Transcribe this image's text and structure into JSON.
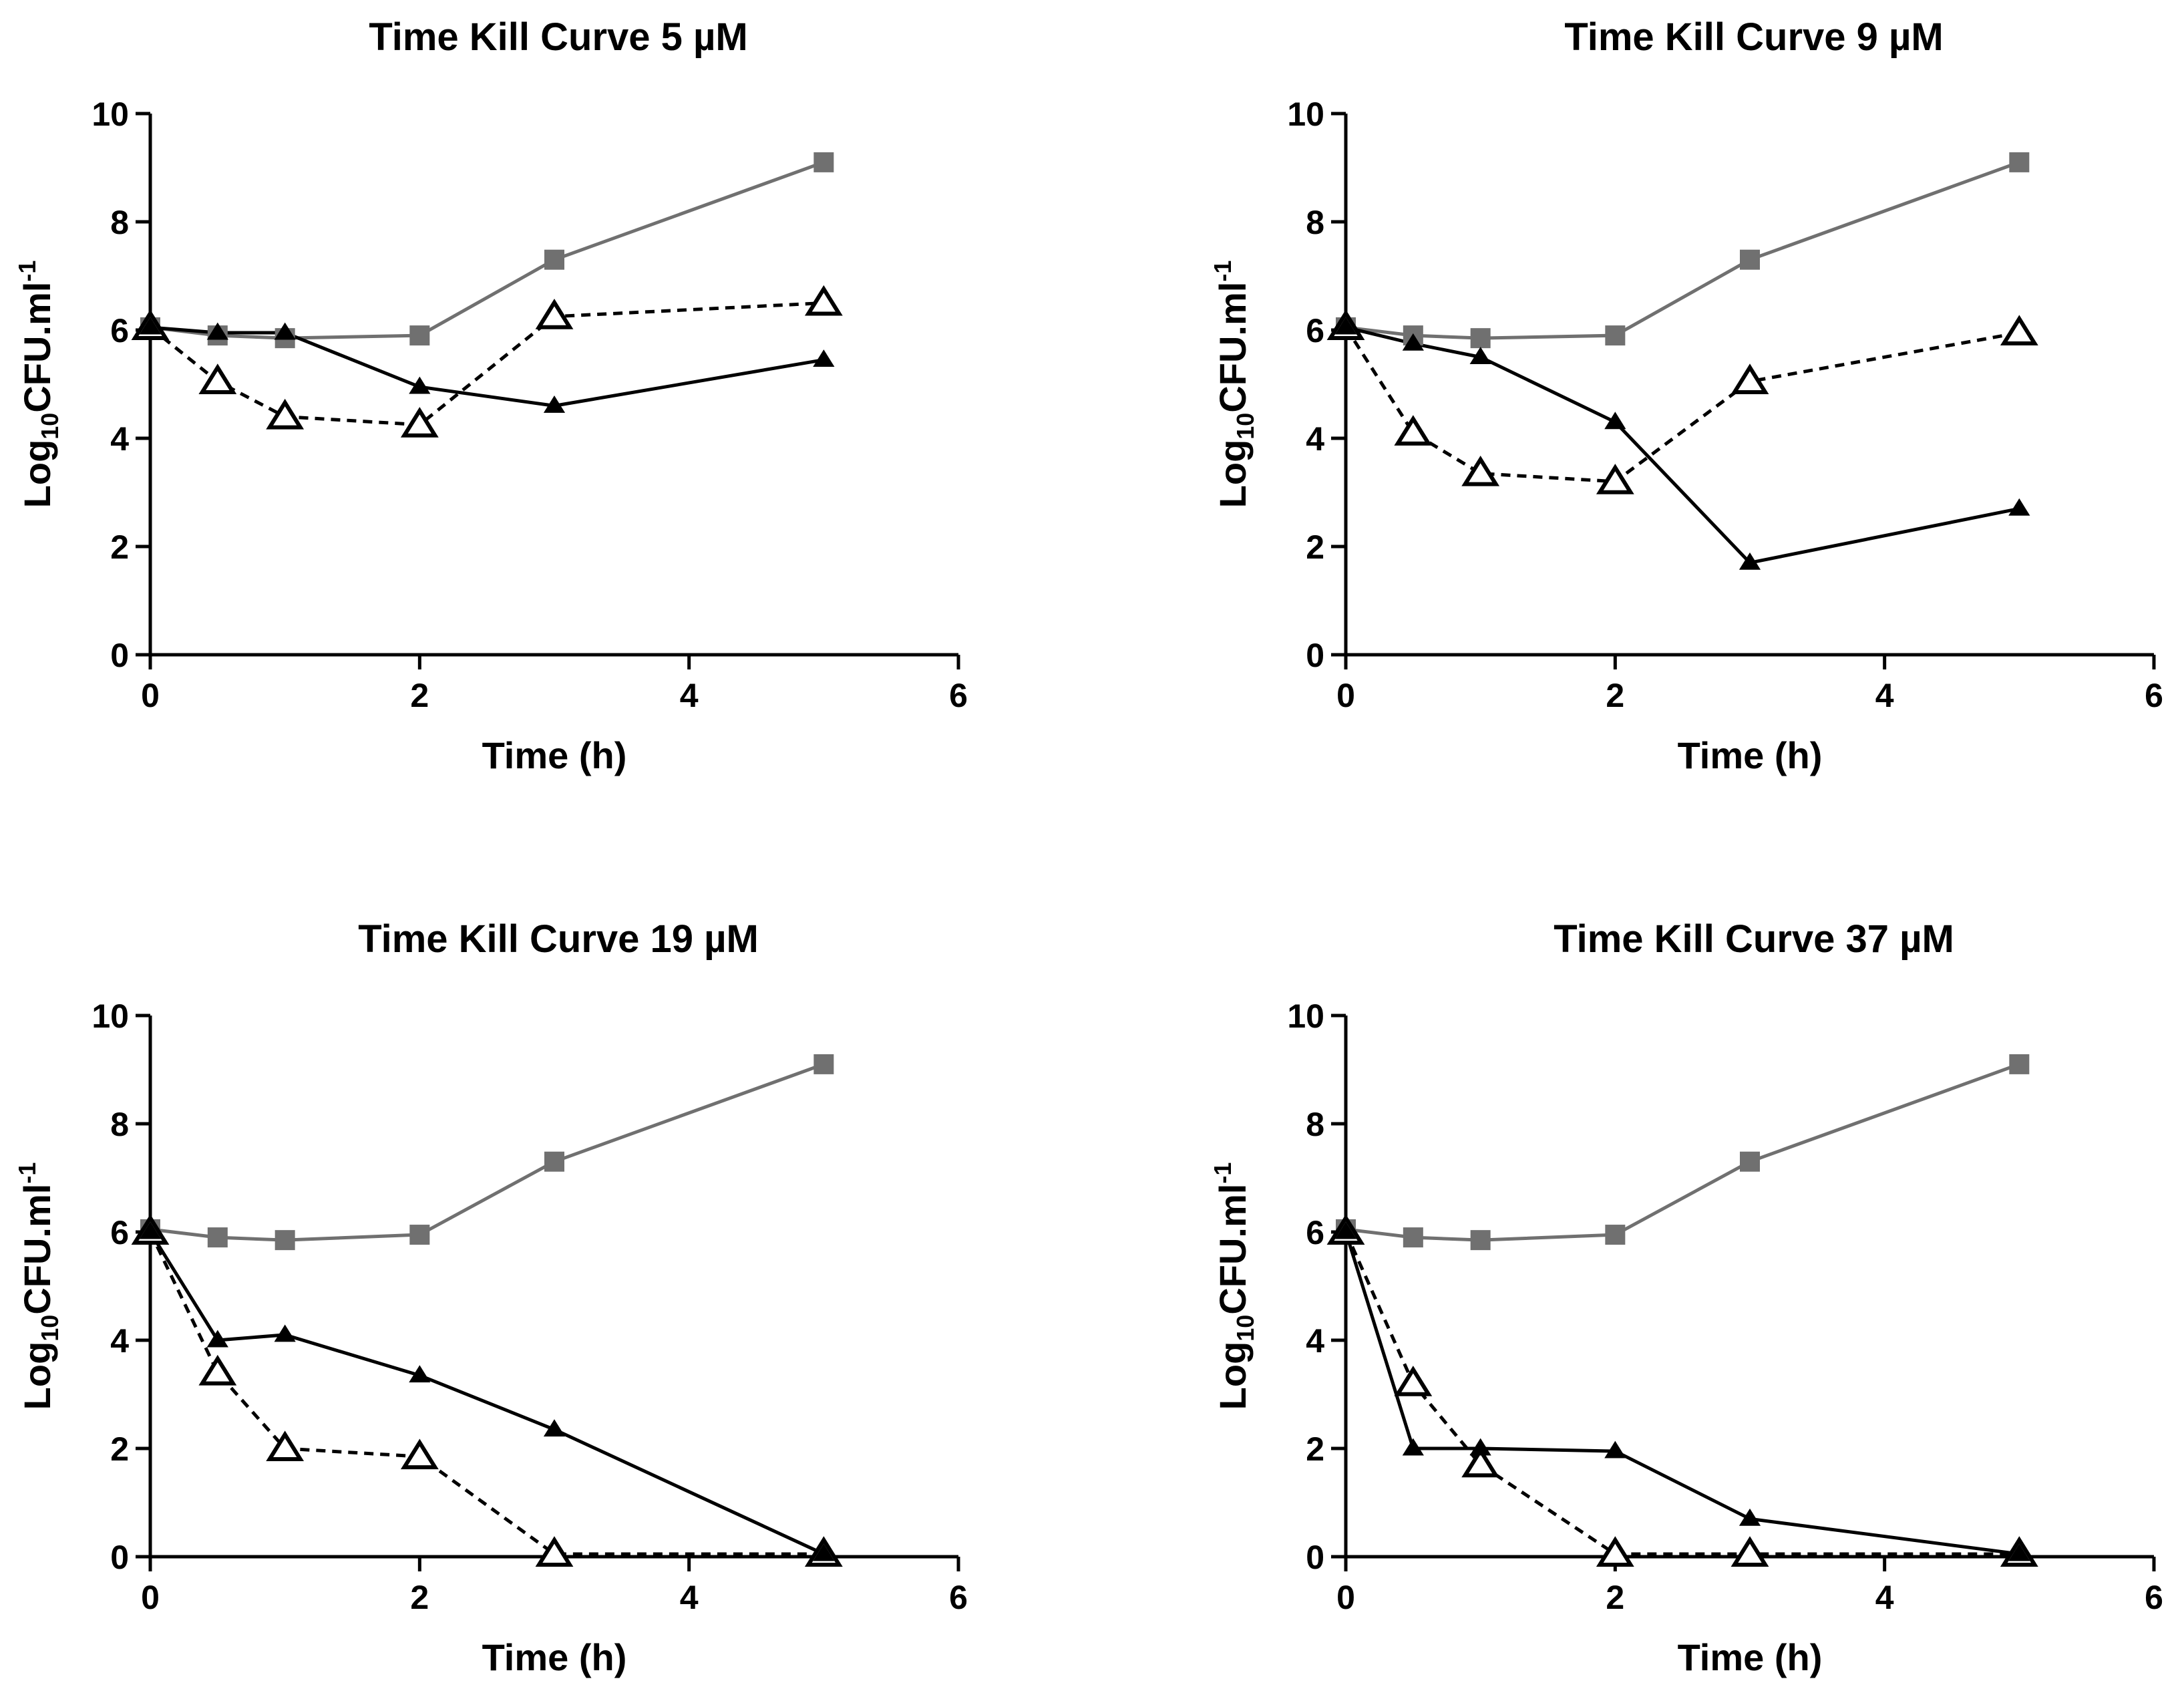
{
  "colors": {
    "control": "#707070",
    "drug": "#000000",
    "combo": "#000000",
    "axis": "#000000"
  },
  "chart_data": [
    {
      "type": "line",
      "title": "Time Kill Curve 5 µM",
      "xlabel": "Time (h)",
      "ylabel_base": "Log",
      "ylabel_sub": "10",
      "ylabel_main": "CFU.ml",
      "ylabel_sup": "-1",
      "xlim": [
        0,
        6
      ],
      "ylim": [
        0,
        10
      ],
      "xticks": [
        0,
        2,
        4,
        6
      ],
      "yticks": [
        0,
        2,
        4,
        6,
        8,
        10
      ],
      "grid": false,
      "series": [
        {
          "marker": "square",
          "style": "solid-gray",
          "x": [
            0,
            0.5,
            1,
            2,
            3,
            5
          ],
          "y": [
            6.05,
            5.9,
            5.85,
            5.9,
            7.3,
            9.1
          ]
        },
        {
          "marker": "filled-triangle",
          "style": "solid-black",
          "x": [
            0,
            0.5,
            1,
            2,
            3,
            5
          ],
          "y": [
            6.05,
            5.95,
            5.95,
            4.95,
            4.6,
            5.45
          ]
        },
        {
          "marker": "open-triangle",
          "style": "dashed-black",
          "x": [
            0,
            0.5,
            1,
            2,
            3,
            5
          ],
          "y": [
            6.05,
            5.05,
            4.4,
            4.25,
            6.25,
            6.5
          ]
        }
      ]
    },
    {
      "type": "line",
      "title": "Time Kill Curve 9 µM",
      "xlabel": "Time (h)",
      "ylabel_base": "Log",
      "ylabel_sub": "10",
      "ylabel_main": "CFU.ml",
      "ylabel_sup": "-1",
      "xlim": [
        0,
        6
      ],
      "ylim": [
        0,
        10
      ],
      "xticks": [
        0,
        2,
        4,
        6
      ],
      "yticks": [
        0,
        2,
        4,
        6,
        8,
        10
      ],
      "grid": false,
      "series": [
        {
          "marker": "square",
          "style": "solid-gray",
          "x": [
            0,
            0.5,
            1,
            2,
            3,
            5
          ],
          "y": [
            6.05,
            5.9,
            5.85,
            5.9,
            7.3,
            9.1
          ]
        },
        {
          "marker": "filled-triangle",
          "style": "solid-black",
          "x": [
            0,
            0.5,
            1,
            2,
            3,
            5
          ],
          "y": [
            6.05,
            5.75,
            5.5,
            4.3,
            1.7,
            2.7
          ]
        },
        {
          "marker": "open-triangle",
          "style": "dashed-black",
          "x": [
            0,
            0.5,
            1,
            2,
            3,
            5
          ],
          "y": [
            6.05,
            4.1,
            3.35,
            3.2,
            5.05,
            5.95
          ]
        }
      ]
    },
    {
      "type": "line",
      "title": "Time Kill Curve 19 µM",
      "xlabel": "Time (h)",
      "ylabel_base": "Log",
      "ylabel_sub": "10",
      "ylabel_main": "CFU.ml",
      "ylabel_sup": "-1",
      "xlim": [
        0,
        6
      ],
      "ylim": [
        0,
        10
      ],
      "xticks": [
        0,
        2,
        4,
        6
      ],
      "yticks": [
        0,
        2,
        4,
        6,
        8,
        10
      ],
      "grid": false,
      "series": [
        {
          "marker": "square",
          "style": "solid-gray",
          "x": [
            0,
            0.5,
            1,
            2,
            3,
            5
          ],
          "y": [
            6.05,
            5.9,
            5.85,
            5.95,
            7.3,
            9.1
          ]
        },
        {
          "marker": "filled-triangle",
          "style": "solid-black",
          "x": [
            0,
            0.5,
            1,
            2,
            3,
            5
          ],
          "y": [
            6.0,
            4.0,
            4.1,
            3.35,
            2.35,
            0.05
          ]
        },
        {
          "marker": "open-triangle",
          "style": "dashed-black",
          "x": [
            0,
            0.5,
            1,
            2,
            3,
            5
          ],
          "y": [
            6.0,
            3.4,
            2.0,
            1.85,
            0.05,
            0.05
          ]
        }
      ]
    },
    {
      "type": "line",
      "title": "Time Kill Curve 37 µM",
      "xlabel": "Time (h)",
      "ylabel_base": "Log",
      "ylabel_sub": "10",
      "ylabel_main": "CFU.ml",
      "ylabel_sup": "-1",
      "xlim": [
        0,
        6
      ],
      "ylim": [
        0,
        10
      ],
      "xticks": [
        0,
        2,
        4,
        6
      ],
      "yticks": [
        0,
        2,
        4,
        6,
        8,
        10
      ],
      "grid": false,
      "series": [
        {
          "marker": "square",
          "style": "solid-gray",
          "x": [
            0,
            0.5,
            1,
            2,
            3,
            5
          ],
          "y": [
            6.05,
            5.9,
            5.85,
            5.95,
            7.3,
            9.1
          ]
        },
        {
          "marker": "filled-triangle",
          "style": "solid-black",
          "x": [
            0,
            0.5,
            1,
            2,
            3,
            5
          ],
          "y": [
            6.0,
            2.0,
            2.0,
            1.95,
            0.7,
            0.05
          ]
        },
        {
          "marker": "open-triangle",
          "style": "dashed-black",
          "x": [
            0,
            0.5,
            1,
            2,
            3,
            5
          ],
          "y": [
            6.0,
            3.2,
            1.7,
            0.05,
            0.05,
            0.05
          ]
        }
      ]
    }
  ]
}
